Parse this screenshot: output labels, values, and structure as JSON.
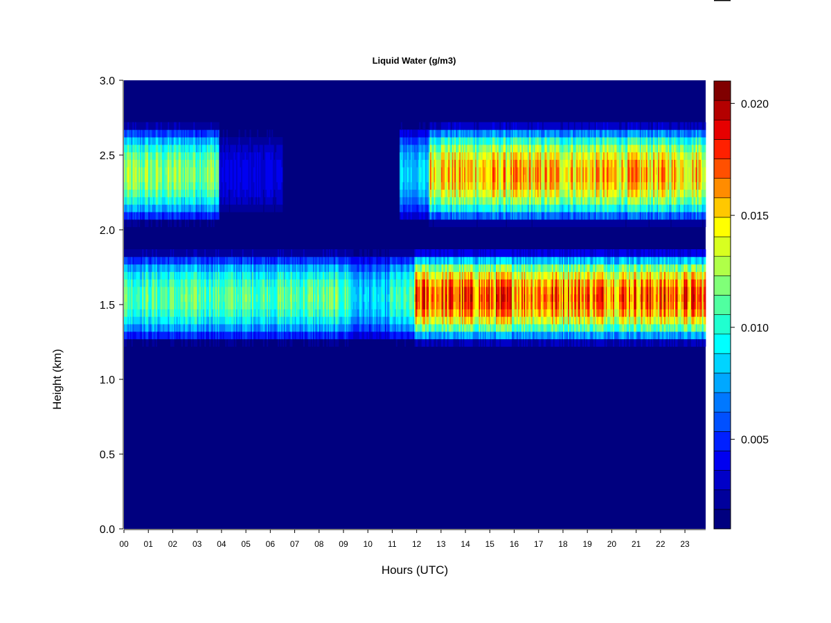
{
  "chart_data": {
    "type": "heatmap",
    "title": "Liquid Water (g/m3)",
    "xlabel": "Hours (UTC)",
    "ylabel": "Height (km)",
    "xlim": [
      0,
      23.85
    ],
    "ylim": [
      0,
      3.0
    ],
    "x_ticks": [
      "00",
      "01",
      "02",
      "03",
      "04",
      "05",
      "06",
      "07",
      "08",
      "09",
      "10",
      "11",
      "12",
      "13",
      "14",
      "15",
      "16",
      "17",
      "18",
      "19",
      "20",
      "21",
      "22",
      "23"
    ],
    "y_ticks": [
      "0.0",
      "0.5",
      "1.0",
      "1.5",
      "2.0",
      "2.5",
      "3.0"
    ],
    "colorbar": {
      "min": 0.001,
      "max": 0.021,
      "tick_values": [
        0.005,
        0.01,
        0.015,
        0.02
      ],
      "tick_labels": [
        "0.005",
        "0.010",
        "0.015",
        "0.020"
      ],
      "colors": [
        "#00007f",
        "#00009c",
        "#0000c8",
        "#0000f0",
        "#0020ff",
        "#0050ff",
        "#0078ff",
        "#00a8ff",
        "#00d4ff",
        "#00ffff",
        "#20ffd0",
        "#50ffa0",
        "#80ff78",
        "#b0ff48",
        "#d8ff20",
        "#ffff00",
        "#ffc800",
        "#ff8c00",
        "#ff5000",
        "#ff2000",
        "#e60000",
        "#b40000",
        "#800000"
      ]
    },
    "layers": [
      {
        "name": "upper cloud layer",
        "height_range_km": [
          2.05,
          2.7
        ],
        "segments": [
          {
            "hours": [
              0.0,
              3.9
            ],
            "peak_value": 0.013
          },
          {
            "hours": [
              3.9,
              6.5
            ],
            "peak_value": 0.004
          },
          {
            "hours": [
              11.3,
              12.5
            ],
            "peak_value": 0.009
          },
          {
            "hours": [
              12.5,
              23.85
            ],
            "peak_value": 0.0165
          }
        ]
      },
      {
        "name": "lower cloud layer",
        "height_range_km": [
          1.25,
          1.85
        ],
        "segments": [
          {
            "hours": [
              0.0,
              9.3
            ],
            "peak_value": 0.012
          },
          {
            "hours": [
              9.3,
              10.9
            ],
            "peak_value": 0.009
          },
          {
            "hours": [
              10.9,
              11.9
            ],
            "peak_value": 0.011
          },
          {
            "hours": [
              11.9,
              23.85
            ],
            "peak_value": 0.0185
          }
        ]
      }
    ]
  }
}
